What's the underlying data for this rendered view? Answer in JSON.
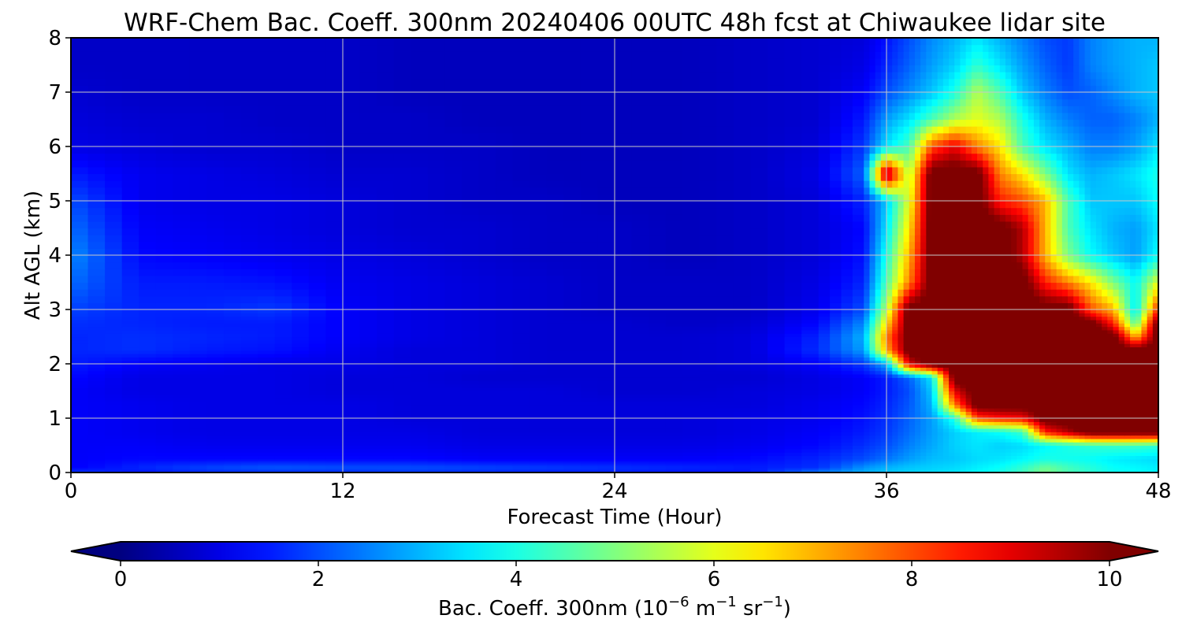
{
  "chart_data": {
    "type": "heatmap",
    "title": "WRF-Chem Bac. Coeff. 300nm  20240406 00UTC 48h fcst at Chiwaukee lidar site",
    "xlabel": "Forecast Time (Hour)",
    "ylabel": "Alt AGL (km)",
    "xlim": [
      0,
      48
    ],
    "ylim": [
      0,
      8
    ],
    "x_ticks": [
      "0",
      "12",
      "24",
      "36",
      "48"
    ],
    "y_ticks": [
      "0",
      "1",
      "2",
      "3",
      "4",
      "5",
      "6",
      "7",
      "8"
    ],
    "grid": true,
    "colormap": "jet",
    "colorbar": {
      "range": [
        0,
        10
      ],
      "ticks": [
        "0",
        "2",
        "4",
        "6",
        "8",
        "10"
      ],
      "extend": "both",
      "orientation": "horizontal",
      "label_main": "Bac. Coeff. 300nm  (10",
      "label_exp1": "−6",
      "label_m": " m",
      "label_exp2": "−1",
      "label_sr": " sr",
      "label_exp3": "−1",
      "label_close": ")"
    },
    "x": [
      0,
      3,
      6,
      9,
      12,
      15,
      18,
      21,
      24,
      27,
      30,
      33,
      35,
      36,
      37,
      38,
      39,
      40,
      41,
      42,
      43,
      44,
      45,
      46,
      47,
      48
    ],
    "y": [
      0,
      0.1,
      0.25,
      0.5,
      0.75,
      1,
      1.25,
      1.5,
      1.75,
      2,
      2.25,
      2.5,
      2.75,
      3,
      3.5,
      4,
      4.5,
      5,
      5.5,
      6,
      6.5,
      7,
      7.5,
      8
    ],
    "values": [
      [
        1.9,
        1.4,
        1.6,
        1.6,
        1.6,
        1.7,
        1.6,
        1.5,
        1.5,
        1.4,
        1.4,
        2.6,
        3.0,
        3.2,
        3.3,
        3.4,
        3.5,
        3.7,
        4.0,
        4.4,
        5.0,
        4.5,
        4.2,
        3.9,
        3.8,
        3.6
      ],
      [
        1.2,
        1.6,
        1.9,
        2.1,
        2.0,
        2.0,
        1.9,
        1.8,
        1.7,
        1.6,
        1.5,
        1.7,
        2.7,
        3.0,
        3.2,
        3.3,
        3.4,
        3.6,
        3.8,
        4.2,
        4.8,
        4.4,
        4.1,
        3.8,
        3.7,
        3.6
      ],
      [
        1.2,
        1.3,
        1.3,
        1.3,
        1.3,
        1.3,
        1.2,
        1.2,
        1.2,
        1.2,
        1.3,
        1.6,
        2.0,
        2.4,
        2.8,
        3.1,
        3.2,
        3.4,
        3.5,
        3.7,
        4.0,
        3.9,
        3.8,
        3.6,
        3.5,
        3.4
      ],
      [
        1.2,
        1.2,
        1.1,
        1.1,
        1.1,
        1.1,
        1.0,
        1.0,
        1.0,
        1.0,
        1.1,
        1.3,
        1.7,
        2.0,
        2.5,
        2.9,
        3.3,
        3.5,
        3.3,
        3.4,
        3.7,
        4.0,
        4.2,
        4.3,
        4.3,
        4.2
      ],
      [
        1.2,
        1.1,
        1.0,
        1.0,
        1.0,
        1.0,
        0.9,
        0.9,
        0.9,
        0.9,
        1.0,
        1.2,
        1.5,
        1.8,
        2.3,
        2.8,
        3.3,
        3.6,
        3.8,
        4.3,
        8.5,
        9.5,
        10.5,
        10.5,
        10.5,
        10.5
      ],
      [
        1.2,
        1.1,
        1.0,
        1.0,
        1.0,
        0.9,
        0.9,
        0.9,
        0.9,
        0.9,
        1.0,
        1.1,
        1.4,
        1.7,
        2.2,
        2.8,
        4.0,
        8.0,
        8.5,
        8.7,
        10.5,
        10.5,
        10.5,
        10.5,
        10.5,
        10.5
      ],
      [
        1.2,
        1.1,
        1.0,
        1.0,
        1.0,
        0.9,
        0.9,
        0.9,
        0.9,
        0.9,
        0.9,
        1.1,
        1.3,
        1.6,
        2.1,
        3.0,
        7.5,
        10.5,
        10.5,
        10.5,
        10.5,
        10.5,
        10.5,
        10.5,
        10.5,
        10.5
      ],
      [
        1.2,
        1.0,
        1.0,
        1.0,
        0.9,
        0.9,
        0.9,
        0.9,
        0.8,
        0.8,
        0.9,
        1.0,
        1.2,
        1.5,
        2.0,
        3.2,
        9.0,
        10.5,
        10.5,
        10.5,
        10.5,
        10.5,
        10.5,
        10.5,
        10.5,
        10.5
      ],
      [
        1.3,
        1.0,
        1.0,
        1.0,
        0.9,
        0.9,
        0.8,
        0.8,
        0.8,
        0.8,
        0.8,
        1.0,
        1.2,
        1.5,
        2.2,
        3.5,
        10.5,
        10.5,
        10.5,
        10.5,
        10.5,
        10.5,
        10.5,
        10.5,
        10.5,
        10.5
      ],
      [
        1.5,
        1.2,
        1.1,
        1.0,
        1.0,
        0.9,
        0.9,
        0.8,
        0.8,
        0.8,
        0.9,
        1.2,
        1.8,
        3.0,
        9.0,
        10.5,
        10.5,
        10.5,
        10.5,
        10.5,
        10.5,
        10.5,
        10.5,
        10.5,
        10.5,
        10.5
      ],
      [
        1.6,
        1.7,
        1.5,
        1.4,
        1.1,
        0.9,
        0.9,
        0.8,
        0.8,
        0.8,
        0.9,
        1.7,
        2.8,
        7.0,
        10.5,
        10.5,
        10.5,
        10.5,
        10.5,
        10.5,
        10.5,
        10.5,
        10.5,
        10.5,
        10.5,
        10.5
      ],
      [
        1.6,
        1.7,
        1.6,
        1.5,
        1.2,
        1.0,
        0.9,
        0.8,
        0.8,
        0.8,
        0.9,
        1.6,
        3.0,
        7.5,
        10.5,
        10.5,
        10.5,
        10.5,
        10.5,
        10.5,
        10.5,
        10.5,
        10.5,
        10.5,
        7.0,
        10.5
      ],
      [
        1.7,
        1.6,
        1.5,
        1.5,
        1.2,
        1.0,
        0.9,
        0.8,
        0.8,
        0.7,
        0.8,
        1.3,
        2.6,
        6.5,
        10.5,
        10.5,
        10.5,
        10.5,
        10.5,
        10.5,
        10.5,
        10.5,
        10.5,
        8.5,
        4.5,
        10.5
      ],
      [
        1.9,
        1.6,
        1.6,
        1.8,
        1.2,
        1.0,
        0.9,
        0.8,
        0.7,
        0.7,
        0.7,
        1.1,
        2.0,
        5.5,
        10.5,
        10.5,
        10.5,
        10.5,
        10.5,
        10.5,
        10.5,
        10.5,
        8.0,
        7.0,
        3.5,
        8.5
      ],
      [
        2.3,
        1.5,
        1.5,
        1.4,
        1.1,
        1.0,
        0.9,
        0.8,
        0.7,
        0.7,
        0.7,
        1.0,
        1.6,
        4.5,
        7.5,
        10.5,
        10.5,
        10.5,
        10.5,
        10.5,
        8.5,
        7.5,
        6.5,
        5.0,
        3.8,
        6.0
      ],
      [
        2.6,
        1.3,
        1.2,
        1.1,
        1.0,
        0.9,
        0.8,
        0.7,
        0.7,
        0.6,
        0.7,
        0.9,
        1.4,
        4.0,
        7.0,
        10.5,
        10.5,
        10.5,
        10.5,
        9.5,
        7.0,
        5.0,
        3.8,
        3.2,
        2.8,
        3.8
      ],
      [
        2.3,
        1.2,
        1.1,
        1.0,
        0.9,
        0.8,
        0.8,
        0.7,
        0.7,
        0.6,
        0.7,
        0.9,
        1.3,
        3.5,
        6.5,
        10.5,
        10.5,
        10.5,
        10.5,
        9.5,
        7.0,
        4.5,
        3.5,
        3.0,
        2.8,
        3.5
      ],
      [
        2.0,
        1.1,
        1.0,
        1.0,
        0.9,
        0.8,
        0.7,
        0.7,
        0.6,
        0.6,
        0.7,
        0.9,
        1.6,
        3.2,
        6.0,
        10.5,
        10.5,
        10.5,
        8.5,
        8.0,
        7.0,
        4.5,
        3.2,
        3.2,
        3.2,
        3.8
      ],
      [
        1.5,
        1.1,
        1.0,
        0.9,
        0.8,
        0.8,
        0.7,
        0.6,
        0.6,
        0.6,
        0.7,
        1.0,
        2.2,
        10.0,
        5.5,
        10.5,
        10.5,
        10.5,
        7.5,
        6.5,
        5.0,
        3.5,
        3.0,
        3.2,
        3.5,
        4.0
      ],
      [
        1.0,
        0.9,
        0.8,
        0.8,
        0.7,
        0.7,
        0.7,
        0.6,
        0.6,
        0.6,
        0.7,
        0.9,
        1.8,
        3.5,
        4.5,
        8.0,
        9.0,
        7.5,
        6.5,
        4.5,
        3.5,
        3.0,
        2.5,
        2.5,
        2.8,
        3.5
      ],
      [
        0.9,
        0.8,
        0.8,
        0.7,
        0.7,
        0.7,
        0.6,
        0.6,
        0.6,
        0.6,
        0.7,
        0.8,
        1.5,
        2.8,
        3.5,
        4.5,
        5.5,
        6.0,
        5.5,
        4.0,
        3.0,
        2.5,
        2.2,
        2.2,
        2.5,
        3.0
      ],
      [
        0.8,
        0.7,
        0.7,
        0.7,
        0.7,
        0.6,
        0.6,
        0.6,
        0.6,
        0.6,
        0.7,
        0.8,
        1.2,
        2.0,
        2.6,
        3.2,
        4.0,
        5.5,
        4.5,
        3.2,
        2.5,
        2.0,
        2.2,
        2.6,
        3.0,
        3.2
      ],
      [
        0.7,
        0.7,
        0.7,
        0.7,
        0.7,
        0.6,
        0.6,
        0.6,
        0.6,
        0.6,
        0.7,
        0.8,
        1.0,
        1.6,
        2.2,
        2.8,
        3.3,
        4.2,
        3.5,
        2.8,
        2.2,
        1.8,
        2.5,
        2.8,
        3.0,
        3.2
      ],
      [
        0.7,
        0.7,
        0.7,
        0.7,
        0.7,
        0.6,
        0.6,
        0.6,
        0.6,
        0.6,
        0.7,
        0.8,
        0.9,
        1.4,
        2.0,
        2.6,
        3.0,
        3.5,
        3.0,
        2.5,
        2.0,
        1.8,
        2.5,
        2.8,
        3.0,
        3.0
      ]
    ]
  }
}
